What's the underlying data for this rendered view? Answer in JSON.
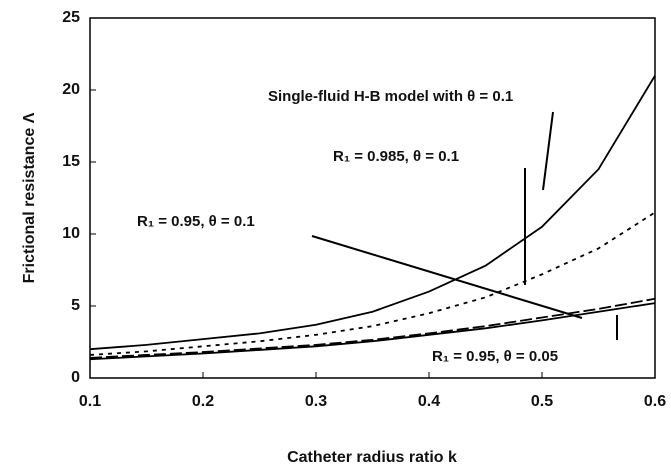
{
  "chart_data": {
    "type": "line",
    "xlabel": "Catheter radius ratio k",
    "ylabel": "Frictional resistance Λ",
    "x": [
      0.1,
      0.15,
      0.2,
      0.25,
      0.3,
      0.35,
      0.4,
      0.45,
      0.5,
      0.55,
      0.6
    ],
    "xlim": [
      0.1,
      0.6
    ],
    "xticks": [
      0.1,
      0.2,
      0.3,
      0.4,
      0.5,
      0.6
    ],
    "ylim": [
      0,
      25
    ],
    "yticks": [
      0,
      5,
      10,
      15,
      20,
      25
    ],
    "grid": false,
    "series": [
      {
        "name": "Single-fluid H-B model with θ = 0.1",
        "color": "#000000",
        "style": "solid",
        "values": [
          2.0,
          2.3,
          2.7,
          3.1,
          3.7,
          4.6,
          6.0,
          7.8,
          10.5,
          14.5,
          21.0
        ]
      },
      {
        "name": "R₁ = 0.985, θ = 0.1",
        "color": "#000000",
        "style": "dotted",
        "values": [
          1.6,
          1.85,
          2.2,
          2.55,
          3.0,
          3.6,
          4.5,
          5.6,
          7.2,
          9.0,
          11.5
        ]
      },
      {
        "name": "R₁ = 0.95, θ = 0.1",
        "color": "#000000",
        "style": "solid",
        "values": [
          1.3,
          1.5,
          1.7,
          1.95,
          2.2,
          2.55,
          3.0,
          3.45,
          4.0,
          4.6,
          5.2
        ]
      },
      {
        "name": "R₁ = 0.95, θ = 0.05",
        "color": "#000000",
        "style": "dashed",
        "values": [
          1.4,
          1.6,
          1.8,
          2.05,
          2.3,
          2.65,
          3.1,
          3.6,
          4.2,
          4.8,
          5.5
        ]
      }
    ]
  }
}
